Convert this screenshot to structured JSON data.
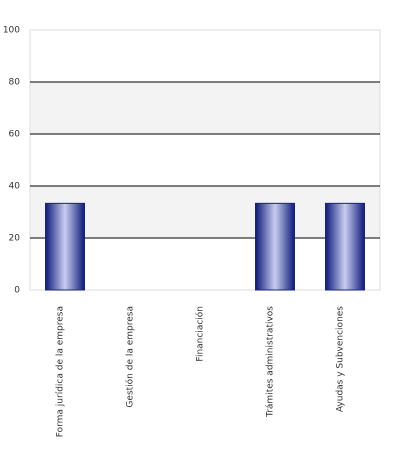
{
  "chart_data": {
    "type": "bar",
    "categories": [
      "Forma jurídica de la empresa",
      "Gestión de la empresa",
      "Financiación",
      "Trámites administrativos",
      "Ayudas y Subvenciones"
    ],
    "values": [
      33.33,
      0,
      0,
      33.33,
      33.33
    ],
    "color": "#1a237e",
    "ylim": [
      0,
      100
    ],
    "yticks": [
      0,
      20,
      40,
      60,
      80,
      100
    ],
    "grid": true,
    "alternate_bands": true
  }
}
